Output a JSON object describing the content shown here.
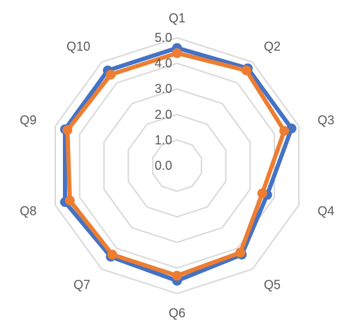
{
  "chart_data": {
    "type": "radar",
    "categories": [
      "Q1",
      "Q2",
      "Q3",
      "Q4",
      "Q5",
      "Q6",
      "Q7",
      "Q8",
      "Q9",
      "Q10"
    ],
    "range": [
      0,
      5
    ],
    "ticks": [
      0.0,
      1.0,
      2.0,
      3.0,
      4.0,
      5.0
    ],
    "tick_labels": [
      "0.0",
      "1.0",
      "2.0",
      "3.0",
      "4.0",
      "5.0"
    ],
    "grid": true,
    "legend": "none",
    "series": [
      {
        "values": [
          4.6,
          4.7,
          4.7,
          3.7,
          4.3,
          4.5,
          4.4,
          4.6,
          4.6,
          4.6
        ],
        "color": "#4472C4"
      },
      {
        "values": [
          4.4,
          4.6,
          4.4,
          3.5,
          4.2,
          4.3,
          4.3,
          4.4,
          4.5,
          4.4
        ],
        "color": "#ED7D31"
      }
    ]
  }
}
